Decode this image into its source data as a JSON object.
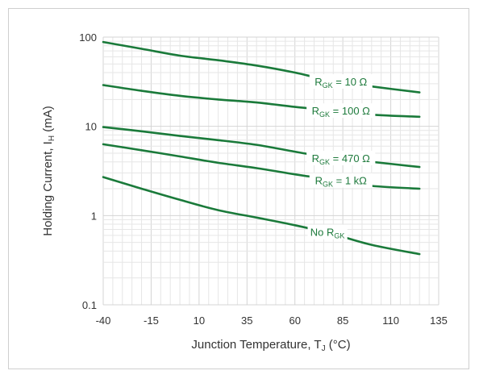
{
  "chart_data": {
    "type": "line",
    "x_axis": {
      "title": "Junction Temperature, T",
      "title_subscript": "J",
      "title_suffix": " (°C)",
      "min": -40,
      "max": 135,
      "ticks": [
        -40,
        -15,
        10,
        35,
        60,
        85,
        110,
        135
      ],
      "tick_labels": [
        "-40",
        "-15",
        "10",
        "35",
        "60",
        "85",
        "110",
        "135"
      ]
    },
    "y_axis": {
      "title": "Holding Current, I",
      "title_subscript": "H",
      "title_suffix": " (mA)",
      "scale": "log",
      "min": 0.1,
      "max": 100,
      "ticks": [
        0.1,
        1,
        10,
        100
      ],
      "tick_labels": [
        "0.1",
        "1",
        "10",
        "100"
      ]
    },
    "grid": "on (major and minor, log minor)",
    "series": [
      {
        "name": "R = 10 Ω",
        "label_main": "R",
        "label_sub": "GK",
        "label_suffix": " = 10 Ω",
        "x": [
          -40,
          -20,
          0,
          20,
          40,
          60,
          80,
          100,
          125
        ],
        "y": [
          88,
          74,
          62,
          55,
          48,
          40,
          32,
          28,
          24
        ]
      },
      {
        "name": "R = 100 Ω",
        "label_main": "R",
        "label_sub": "GK",
        "label_suffix": " = 100 Ω",
        "x": [
          -40,
          -20,
          0,
          20,
          40,
          60,
          80,
          100,
          125
        ],
        "y": [
          29,
          25,
          22,
          20,
          18.5,
          16.5,
          15,
          13.5,
          12.8
        ]
      },
      {
        "name": "R = 470 Ω",
        "label_main": "R",
        "label_sub": "GK",
        "label_suffix": " = 470 Ω",
        "x": [
          -40,
          -20,
          0,
          20,
          40,
          60,
          80,
          100,
          125
        ],
        "y": [
          9.8,
          8.8,
          7.8,
          7.0,
          6.2,
          5.2,
          4.4,
          4.0,
          3.5
        ]
      },
      {
        "name": "R = 1 kΩ",
        "label_main": "R",
        "label_sub": "GK",
        "label_suffix": " = 1 kΩ",
        "x": [
          -40,
          -20,
          0,
          20,
          40,
          60,
          80,
          100,
          125
        ],
        "y": [
          6.3,
          5.4,
          4.6,
          3.9,
          3.4,
          2.9,
          2.5,
          2.15,
          2.0
        ]
      },
      {
        "name": "No R",
        "label_main": "No R",
        "label_sub": "GK",
        "label_suffix": "",
        "x": [
          -40,
          -20,
          0,
          20,
          40,
          60,
          80,
          100,
          125
        ],
        "y": [
          2.7,
          2.0,
          1.5,
          1.15,
          0.95,
          0.78,
          0.62,
          0.47,
          0.37
        ]
      }
    ],
    "colors": {
      "curve": "#1a7a3a",
      "label": "#1e7a3c",
      "grid": "#d4d4d4",
      "frame_border": "#cfcfcf"
    }
  }
}
